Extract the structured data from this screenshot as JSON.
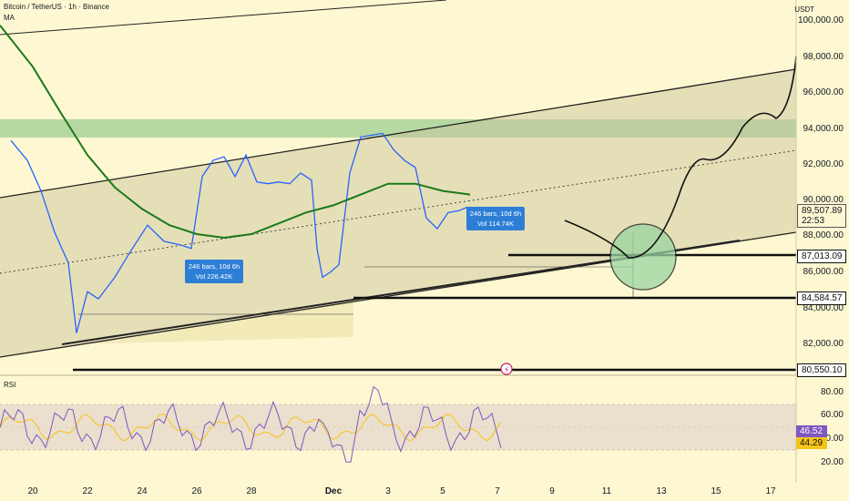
{
  "header": {
    "symbol": "Bitcoin / TetherUS · 1h · Binance",
    "indicator": "MA",
    "currency": "USDT",
    "rsi_label": "RSI"
  },
  "price_axis": {
    "ticks": [
      "100,000.00",
      "98,000.00",
      "96,000.00",
      "94,000.00",
      "92,000.00",
      "90,000.00",
      "88,000.00",
      "86,000.00",
      "84,000.00",
      "82,000.00"
    ],
    "current_price": "89,507.89",
    "countdown": "22:53",
    "levels": [
      "87,013.09",
      "84,584.57",
      "80,550.10"
    ]
  },
  "rsi_axis": {
    "ticks": [
      "80.00",
      "60.00",
      "40.00",
      "20.00"
    ],
    "rsi_value": "46.52",
    "rsi_ma_value": "44.29"
  },
  "x_axis": {
    "labels": [
      "20",
      "22",
      "24",
      "26",
      "28",
      "Dec",
      "3",
      "5",
      "7",
      "9",
      "11",
      "13",
      "15",
      "17"
    ]
  },
  "measure_boxes": [
    {
      "bars": "246 bars, 10d 6h",
      "vol": "Vol 226.42K"
    },
    {
      "bars": "246 bars, 10d 6h",
      "vol": "Vol 114.74K"
    }
  ],
  "colors": {
    "background": "#fdf8d2",
    "candles": "#2962ff",
    "ma": "#1b7a1b",
    "rsi": "#7e57c2",
    "rsi_ma": "#f5c518",
    "resistance_zone": "#a9d49a",
    "target_circle": "#9bd4a0",
    "measure_box": "#2d7fd6"
  },
  "chart_data": {
    "type": "line",
    "title": "Bitcoin / TetherUS · 1h · Binance",
    "ylabel": "USDT",
    "ylim": [
      80000,
      101000
    ],
    "x_labels": [
      "20",
      "22",
      "24",
      "26",
      "28",
      "Dec",
      "3",
      "5",
      "7",
      "9",
      "11",
      "13",
      "15",
      "17"
    ],
    "series": [
      {
        "name": "Price",
        "x": [
          19.2,
          19.8,
          20.3,
          20.8,
          21.3,
          21.6,
          22.0,
          22.4,
          23.0,
          23.6,
          24.2,
          24.8,
          25.4,
          25.8,
          26.2,
          26.6,
          27.0,
          27.4,
          27.8,
          28.2,
          28.6,
          29.0,
          29.4,
          29.8,
          30.2,
          30.4,
          30.6,
          30.9,
          31.2,
          31.6,
          32.0,
          32.4,
          32.8,
          33.2,
          33.6,
          34.0,
          34.4,
          34.8,
          35.2,
          35.6,
          35.9,
          36.1
        ],
        "y": [
          93300,
          92200,
          90500,
          88200,
          86500,
          82600,
          84900,
          84500,
          85700,
          87200,
          88600,
          87700,
          87500,
          87300,
          91300,
          92200,
          92400,
          91300,
          92500,
          91000,
          90900,
          91000,
          90900,
          91500,
          91100,
          87300,
          85700,
          86000,
          86400,
          91500,
          93500,
          93600,
          93700,
          92800,
          92200,
          91800,
          89000,
          88400,
          89300,
          89400,
          89600,
          89500
        ]
      },
      {
        "name": "MA",
        "x": [
          18.8,
          20.0,
          21.0,
          22.0,
          23.0,
          24.0,
          25.0,
          26.0,
          27.0,
          28.0,
          29.0,
          30.0,
          31.0,
          32.0,
          33.0,
          34.0,
          35.0,
          36.0
        ],
        "y": [
          99700,
          97400,
          94900,
          92500,
          90700,
          89500,
          88600,
          88100,
          87900,
          88100,
          88700,
          89300,
          89700,
          90300,
          90900,
          90900,
          90500,
          90300
        ]
      }
    ],
    "rsi": {
      "ylim": [
        10,
        90
      ],
      "value": 46.52,
      "ma_value": 44.29
    },
    "levels": [
      87013.09,
      84584.57,
      80550.1
    ],
    "current_price": 89507.89
  }
}
